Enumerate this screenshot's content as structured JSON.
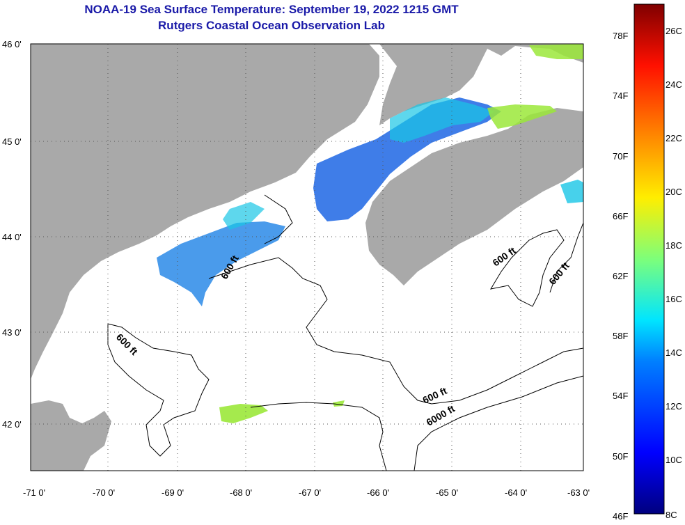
{
  "title": "NOAA-19 Sea Surface Temperature:  September 19, 2022 1215 GMT",
  "subtitle": "Rutgers Coastal Ocean Observation Lab",
  "lat_labels": [
    "46 0'",
    "45 0'",
    "44 0'",
    "43 0'",
    "42 0'"
  ],
  "lon_labels": [
    "-71 0'",
    "-70 0'",
    "-69 0'",
    "-68 0'",
    "-67 0'",
    "-66 0'",
    "-65 0'",
    "-64 0'",
    "-63 0'"
  ],
  "contour_labels": [
    "600 ft",
    "600 ft",
    "600 ft",
    "600 ft",
    "600 ft",
    "6000 ft"
  ],
  "colorbar": {
    "fahrenheit": [
      "78F",
      "74F",
      "70F",
      "66F",
      "62F",
      "58F",
      "54F",
      "50F",
      "46F"
    ],
    "celsius": [
      "26C",
      "24C",
      "22C",
      "20C",
      "18C",
      "16C",
      "14C",
      "12C",
      "10C",
      "8C"
    ]
  },
  "colors": {
    "land": "#a9a9a9",
    "ocean": "#ffffff",
    "title": "#1a1aa8",
    "sst_cool": "#2a6fe6",
    "sst_teal": "#19c6e6",
    "sst_green": "#9be83a"
  }
}
